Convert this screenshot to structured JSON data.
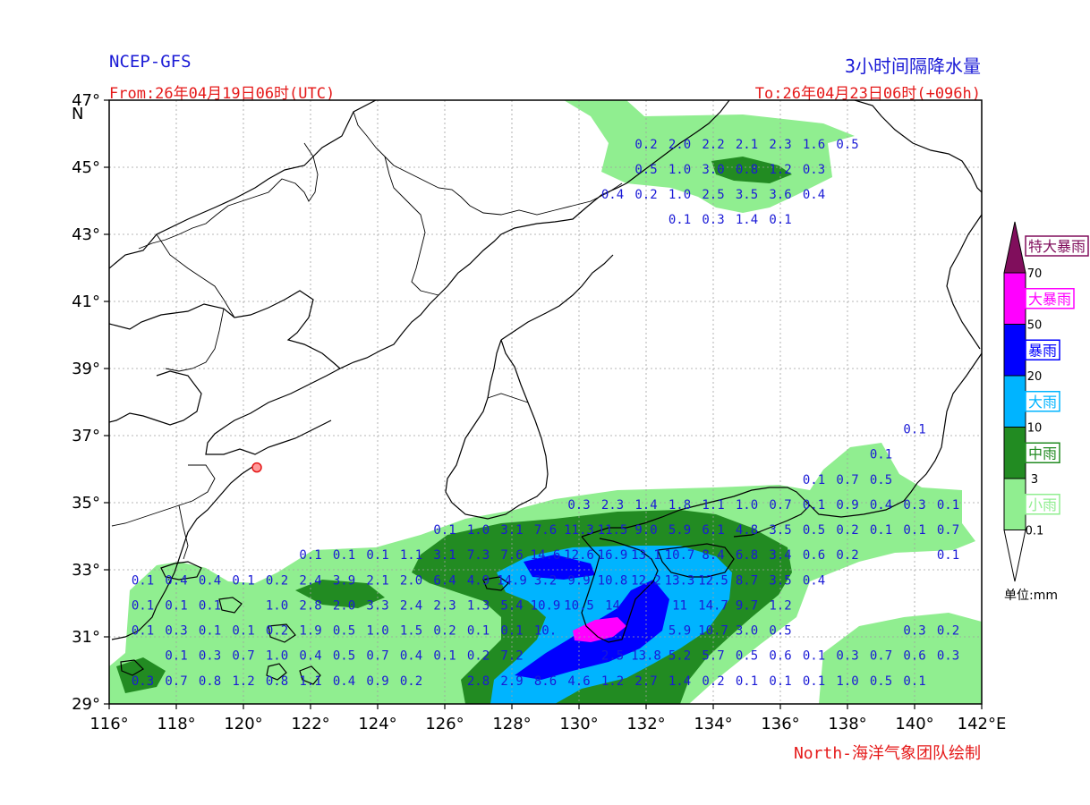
{
  "header": {
    "source": "NCEP-GFS",
    "product": "3小时间隔降水量",
    "from": "From:26年04月19日06时(UTC)",
    "to": "To:26年04月23日06时(+096h)"
  },
  "footer": {
    "credit": "North-海洋气象团队绘制"
  },
  "map": {
    "lon_range": [
      116,
      142
    ],
    "lat_range": [
      29,
      47
    ],
    "lon_ticks": [
      {
        "value": 116,
        "label": "116°"
      },
      {
        "value": 118,
        "label": "118°"
      },
      {
        "value": 120,
        "label": "120°"
      },
      {
        "value": 122,
        "label": "122°"
      },
      {
        "value": 124,
        "label": "124°"
      },
      {
        "value": 126,
        "label": "126°"
      },
      {
        "value": 128,
        "label": "128°"
      },
      {
        "value": 130,
        "label": "130°"
      },
      {
        "value": 132,
        "label": "132°"
      },
      {
        "value": 134,
        "label": "134°"
      },
      {
        "value": 136,
        "label": "136°"
      },
      {
        "value": 138,
        "label": "138°"
      },
      {
        "value": 140,
        "label": "140°"
      },
      {
        "value": 142,
        "label": "142°E"
      }
    ],
    "lat_ticks": [
      {
        "value": 29,
        "label": "29°"
      },
      {
        "value": 31,
        "label": "31°"
      },
      {
        "value": 33,
        "label": "33°"
      },
      {
        "value": 35,
        "label": "35°"
      },
      {
        "value": 37,
        "label": "37°"
      },
      {
        "value": 39,
        "label": "39°"
      },
      {
        "value": 41,
        "label": "41°"
      },
      {
        "value": 43,
        "label": "43°"
      },
      {
        "value": 45,
        "label": "45°"
      },
      {
        "value": 47,
        "label": "47°"
      }
    ],
    "north_label": "N",
    "grid": true,
    "station": {
      "lon": 120.4,
      "lat": 36.05
    }
  },
  "legend": {
    "unit": "单位:mm",
    "categories": [
      {
        "label": "特大暴雨",
        "color": "#800e5c",
        "from": 70
      },
      {
        "label": "大暴雨",
        "color": "#ff00ff",
        "from": 50
      },
      {
        "label": "暴雨",
        "color": "#0000ff",
        "from": 20
      },
      {
        "label": "大雨",
        "color": "#00b4ff",
        "from": 10
      },
      {
        "label": "中雨",
        "color": "#228b22",
        "from": 3
      },
      {
        "label": "小雨",
        "color": "#90ee90",
        "from": 0.1
      }
    ],
    "thresholds": [
      "70",
      "50",
      "20",
      "10",
      "3",
      "0.1"
    ]
  },
  "grid_values": [
    {
      "lon": 117,
      "lat": 29.7,
      "text": "0.3"
    },
    {
      "lon": 118,
      "lat": 29.7,
      "text": "0.7"
    },
    {
      "lon": 119,
      "lat": 29.7,
      "text": "0.8"
    },
    {
      "lon": 120,
      "lat": 29.7,
      "text": "1.2"
    },
    {
      "lon": 121,
      "lat": 29.7,
      "text": "0.8"
    },
    {
      "lon": 122,
      "lat": 29.7,
      "text": "1.1"
    },
    {
      "lon": 123,
      "lat": 29.7,
      "text": "0.4"
    },
    {
      "lon": 124,
      "lat": 29.7,
      "text": "0.9"
    },
    {
      "lon": 125,
      "lat": 29.7,
      "text": "0.2"
    },
    {
      "lon": 127,
      "lat": 29.7,
      "text": "2.8"
    },
    {
      "lon": 128,
      "lat": 29.7,
      "text": "2.9"
    },
    {
      "lon": 129,
      "lat": 29.7,
      "text": "8.6"
    },
    {
      "lon": 130,
      "lat": 29.7,
      "text": "4.6"
    },
    {
      "lon": 131,
      "lat": 29.7,
      "text": "1.2"
    },
    {
      "lon": 132,
      "lat": 29.7,
      "text": "2.7"
    },
    {
      "lon": 133,
      "lat": 29.7,
      "text": "1.4"
    },
    {
      "lon": 134,
      "lat": 29.7,
      "text": "0.2"
    },
    {
      "lon": 135,
      "lat": 29.7,
      "text": "0.1"
    },
    {
      "lon": 136,
      "lat": 29.7,
      "text": "0.1"
    },
    {
      "lon": 137,
      "lat": 29.7,
      "text": "0.1"
    },
    {
      "lon": 138,
      "lat": 29.7,
      "text": "1.0"
    },
    {
      "lon": 139,
      "lat": 29.7,
      "text": "0.5"
    },
    {
      "lon": 140,
      "lat": 29.7,
      "text": "0.1"
    },
    {
      "lon": 118,
      "lat": 30.45,
      "text": "0.1"
    },
    {
      "lon": 119,
      "lat": 30.45,
      "text": "0.3"
    },
    {
      "lon": 120,
      "lat": 30.45,
      "text": "0.7"
    },
    {
      "lon": 121,
      "lat": 30.45,
      "text": "1.0"
    },
    {
      "lon": 122,
      "lat": 30.45,
      "text": "0.4"
    },
    {
      "lon": 123,
      "lat": 30.45,
      "text": "0.5"
    },
    {
      "lon": 124,
      "lat": 30.45,
      "text": "0.7"
    },
    {
      "lon": 125,
      "lat": 30.45,
      "text": "0.4"
    },
    {
      "lon": 126,
      "lat": 30.45,
      "text": "0.1"
    },
    {
      "lon": 127,
      "lat": 30.45,
      "text": "0.2"
    },
    {
      "lon": 128,
      "lat": 30.45,
      "text": "7.2"
    },
    {
      "lon": 131,
      "lat": 30.45,
      "text": "2.5"
    },
    {
      "lon": 132,
      "lat": 30.45,
      "text": "13.8"
    },
    {
      "lon": 133,
      "lat": 30.45,
      "text": "5.2"
    },
    {
      "lon": 134,
      "lat": 30.45,
      "text": "5.7"
    },
    {
      "lon": 135,
      "lat": 30.45,
      "text": "0.5"
    },
    {
      "lon": 136,
      "lat": 30.45,
      "text": "0.6"
    },
    {
      "lon": 137,
      "lat": 30.45,
      "text": "0.1"
    },
    {
      "lon": 138,
      "lat": 30.45,
      "text": "0.3"
    },
    {
      "lon": 139,
      "lat": 30.45,
      "text": "0.7"
    },
    {
      "lon": 140,
      "lat": 30.45,
      "text": "0.6"
    },
    {
      "lon": 141,
      "lat": 30.45,
      "text": "0.3"
    },
    {
      "lon": 117,
      "lat": 31.2,
      "text": "0.1"
    },
    {
      "lon": 118,
      "lat": 31.2,
      "text": "0.3"
    },
    {
      "lon": 119,
      "lat": 31.2,
      "text": "0.1"
    },
    {
      "lon": 120,
      "lat": 31.2,
      "text": "0.1"
    },
    {
      "lon": 121,
      "lat": 31.2,
      "text": "0.2"
    },
    {
      "lon": 122,
      "lat": 31.2,
      "text": "1.9"
    },
    {
      "lon": 123,
      "lat": 31.2,
      "text": "0.5"
    },
    {
      "lon": 124,
      "lat": 31.2,
      "text": "1.0"
    },
    {
      "lon": 125,
      "lat": 31.2,
      "text": "1.5"
    },
    {
      "lon": 126,
      "lat": 31.2,
      "text": "0.2"
    },
    {
      "lon": 127,
      "lat": 31.2,
      "text": "0.1"
    },
    {
      "lon": 128,
      "lat": 31.2,
      "text": "0.1"
    },
    {
      "lon": 129,
      "lat": 31.2,
      "text": "10."
    },
    {
      "lon": 133,
      "lat": 31.2,
      "text": "5.9"
    },
    {
      "lon": 134,
      "lat": 31.2,
      "text": "10.7"
    },
    {
      "lon": 135,
      "lat": 31.2,
      "text": "3.0"
    },
    {
      "lon": 136,
      "lat": 31.2,
      "text": "0.5"
    },
    {
      "lon": 140,
      "lat": 31.2,
      "text": "0.3"
    },
    {
      "lon": 141,
      "lat": 31.2,
      "text": "0.2"
    },
    {
      "lon": 117,
      "lat": 31.95,
      "text": "0.1"
    },
    {
      "lon": 118,
      "lat": 31.95,
      "text": "0.1"
    },
    {
      "lon": 119,
      "lat": 31.95,
      "text": "0.1"
    },
    {
      "lon": 121,
      "lat": 31.95,
      "text": "1.0"
    },
    {
      "lon": 122,
      "lat": 31.95,
      "text": "2.8"
    },
    {
      "lon": 123,
      "lat": 31.95,
      "text": "2.0"
    },
    {
      "lon": 124,
      "lat": 31.95,
      "text": "3.3"
    },
    {
      "lon": 125,
      "lat": 31.95,
      "text": "2.4"
    },
    {
      "lon": 126,
      "lat": 31.95,
      "text": "2.3"
    },
    {
      "lon": 127,
      "lat": 31.95,
      "text": "1.3"
    },
    {
      "lon": 128,
      "lat": 31.95,
      "text": "5.4"
    },
    {
      "lon": 129,
      "lat": 31.95,
      "text": "10.9"
    },
    {
      "lon": 130,
      "lat": 31.95,
      "text": "10.5"
    },
    {
      "lon": 131,
      "lat": 31.95,
      "text": "14"
    },
    {
      "lon": 133,
      "lat": 31.95,
      "text": "11"
    },
    {
      "lon": 134,
      "lat": 31.95,
      "text": "14.7"
    },
    {
      "lon": 135,
      "lat": 31.95,
      "text": "9.7"
    },
    {
      "lon": 136,
      "lat": 31.95,
      "text": "1.2"
    },
    {
      "lon": 117,
      "lat": 32.7,
      "text": "0.1"
    },
    {
      "lon": 118,
      "lat": 32.7,
      "text": "0.4"
    },
    {
      "lon": 119,
      "lat": 32.7,
      "text": "0.4"
    },
    {
      "lon": 120,
      "lat": 32.7,
      "text": "0.1"
    },
    {
      "lon": 121,
      "lat": 32.7,
      "text": "0.2"
    },
    {
      "lon": 122,
      "lat": 32.7,
      "text": "2.4"
    },
    {
      "lon": 123,
      "lat": 32.7,
      "text": "3.9"
    },
    {
      "lon": 124,
      "lat": 32.7,
      "text": "2.1"
    },
    {
      "lon": 125,
      "lat": 32.7,
      "text": "2.0"
    },
    {
      "lon": 126,
      "lat": 32.7,
      "text": "6.4"
    },
    {
      "lon": 127,
      "lat": 32.7,
      "text": "4.9"
    },
    {
      "lon": 128,
      "lat": 32.7,
      "text": "14.9"
    },
    {
      "lon": 129,
      "lat": 32.7,
      "text": "3.2"
    },
    {
      "lon": 130,
      "lat": 32.7,
      "text": "9.9"
    },
    {
      "lon": 131,
      "lat": 32.7,
      "text": "10.8"
    },
    {
      "lon": 132,
      "lat": 32.7,
      "text": "12.2"
    },
    {
      "lon": 133,
      "lat": 32.7,
      "text": "13.3"
    },
    {
      "lon": 134,
      "lat": 32.7,
      "text": "12.5"
    },
    {
      "lon": 135,
      "lat": 32.7,
      "text": "8.7"
    },
    {
      "lon": 136,
      "lat": 32.7,
      "text": "3.5"
    },
    {
      "lon": 137,
      "lat": 32.7,
      "text": "0.4"
    },
    {
      "lon": 122,
      "lat": 33.45,
      "text": "0.1"
    },
    {
      "lon": 123,
      "lat": 33.45,
      "text": "0.1"
    },
    {
      "lon": 124,
      "lat": 33.45,
      "text": "0.1"
    },
    {
      "lon": 125,
      "lat": 33.45,
      "text": "1.1"
    },
    {
      "lon": 126,
      "lat": 33.45,
      "text": "3.1"
    },
    {
      "lon": 127,
      "lat": 33.45,
      "text": "7.3"
    },
    {
      "lon": 128,
      "lat": 33.45,
      "text": "7.6"
    },
    {
      "lon": 129,
      "lat": 33.45,
      "text": "14.6"
    },
    {
      "lon": 130,
      "lat": 33.45,
      "text": "12.6"
    },
    {
      "lon": 131,
      "lat": 33.45,
      "text": "16.9"
    },
    {
      "lon": 132,
      "lat": 33.45,
      "text": "13.1"
    },
    {
      "lon": 133,
      "lat": 33.45,
      "text": "10.7"
    },
    {
      "lon": 134,
      "lat": 33.45,
      "text": "8.4"
    },
    {
      "lon": 135,
      "lat": 33.45,
      "text": "6.8"
    },
    {
      "lon": 136,
      "lat": 33.45,
      "text": "3.4"
    },
    {
      "lon": 137,
      "lat": 33.45,
      "text": "0.6"
    },
    {
      "lon": 138,
      "lat": 33.45,
      "text": "0.2"
    },
    {
      "lon": 141,
      "lat": 33.45,
      "text": "0.1"
    },
    {
      "lon": 126,
      "lat": 34.2,
      "text": "0.1"
    },
    {
      "lon": 127,
      "lat": 34.2,
      "text": "1.0"
    },
    {
      "lon": 128,
      "lat": 34.2,
      "text": "3.1"
    },
    {
      "lon": 129,
      "lat": 34.2,
      "text": "7.6"
    },
    {
      "lon": 130,
      "lat": 34.2,
      "text": "11.3"
    },
    {
      "lon": 131,
      "lat": 34.2,
      "text": "11.5"
    },
    {
      "lon": 132,
      "lat": 34.2,
      "text": "9.0"
    },
    {
      "lon": 133,
      "lat": 34.2,
      "text": "5.9"
    },
    {
      "lon": 134,
      "lat": 34.2,
      "text": "6.1"
    },
    {
      "lon": 135,
      "lat": 34.2,
      "text": "4.8"
    },
    {
      "lon": 136,
      "lat": 34.2,
      "text": "3.5"
    },
    {
      "lon": 137,
      "lat": 34.2,
      "text": "0.5"
    },
    {
      "lon": 138,
      "lat": 34.2,
      "text": "0.2"
    },
    {
      "lon": 139,
      "lat": 34.2,
      "text": "0.1"
    },
    {
      "lon": 140,
      "lat": 34.2,
      "text": "0.1"
    },
    {
      "lon": 141,
      "lat": 34.2,
      "text": "0.7"
    },
    {
      "lon": 130,
      "lat": 34.95,
      "text": "0.3"
    },
    {
      "lon": 131,
      "lat": 34.95,
      "text": "2.3"
    },
    {
      "lon": 132,
      "lat": 34.95,
      "text": "1.4"
    },
    {
      "lon": 133,
      "lat": 34.95,
      "text": "1.8"
    },
    {
      "lon": 134,
      "lat": 34.95,
      "text": "1.1"
    },
    {
      "lon": 135,
      "lat": 34.95,
      "text": "1.0"
    },
    {
      "lon": 136,
      "lat": 34.95,
      "text": "0.7"
    },
    {
      "lon": 137,
      "lat": 34.95,
      "text": "0.1"
    },
    {
      "lon": 138,
      "lat": 34.95,
      "text": "0.9"
    },
    {
      "lon": 139,
      "lat": 34.95,
      "text": "0.4"
    },
    {
      "lon": 140,
      "lat": 34.95,
      "text": "0.3"
    },
    {
      "lon": 141,
      "lat": 34.95,
      "text": "0.1"
    },
    {
      "lon": 137,
      "lat": 35.7,
      "text": "0.1"
    },
    {
      "lon": 138,
      "lat": 35.7,
      "text": "0.7"
    },
    {
      "lon": 139,
      "lat": 35.7,
      "text": "0.5"
    },
    {
      "lon": 139,
      "lat": 36.45,
      "text": "0.1"
    },
    {
      "lon": 140,
      "lat": 37.2,
      "text": "0.1"
    },
    {
      "lon": 133,
      "lat": 43.45,
      "text": "0.1"
    },
    {
      "lon": 134,
      "lat": 43.45,
      "text": "0.3"
    },
    {
      "lon": 135,
      "lat": 43.45,
      "text": "1.4"
    },
    {
      "lon": 136,
      "lat": 43.45,
      "text": "0.1"
    },
    {
      "lon": 131,
      "lat": 44.2,
      "text": "0.4"
    },
    {
      "lon": 132,
      "lat": 44.2,
      "text": "0.2"
    },
    {
      "lon": 133,
      "lat": 44.2,
      "text": "1.0"
    },
    {
      "lon": 134,
      "lat": 44.2,
      "text": "2.5"
    },
    {
      "lon": 135,
      "lat": 44.2,
      "text": "3.5"
    },
    {
      "lon": 136,
      "lat": 44.2,
      "text": "3.6"
    },
    {
      "lon": 137,
      "lat": 44.2,
      "text": "0.4"
    },
    {
      "lon": 132,
      "lat": 44.95,
      "text": "0.5"
    },
    {
      "lon": 133,
      "lat": 44.95,
      "text": "1.0"
    },
    {
      "lon": 134,
      "lat": 44.95,
      "text": "3.0"
    },
    {
      "lon": 135,
      "lat": 44.95,
      "text": "0.8"
    },
    {
      "lon": 136,
      "lat": 44.95,
      "text": "1.2"
    },
    {
      "lon": 137,
      "lat": 44.95,
      "text": "0.3"
    },
    {
      "lon": 132,
      "lat": 45.7,
      "text": "0.2"
    },
    {
      "lon": 133,
      "lat": 45.7,
      "text": "2.0"
    },
    {
      "lon": 134,
      "lat": 45.7,
      "text": "2.2"
    },
    {
      "lon": 135,
      "lat": 45.7,
      "text": "2.1"
    },
    {
      "lon": 136,
      "lat": 45.7,
      "text": "2.3"
    },
    {
      "lon": 137,
      "lat": 45.7,
      "text": "1.6"
    },
    {
      "lon": 138,
      "lat": 45.7,
      "text": "0.5"
    }
  ]
}
